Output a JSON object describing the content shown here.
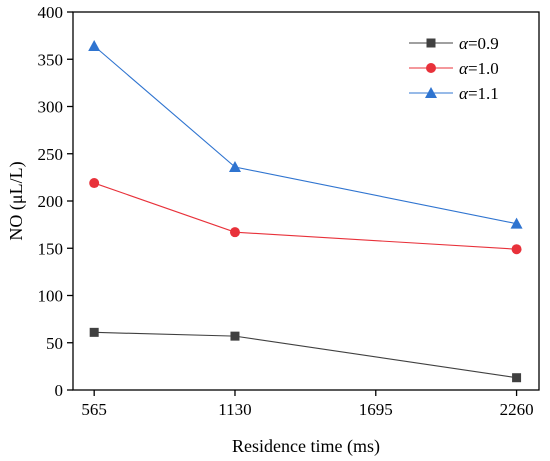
{
  "chart_data": {
    "type": "line",
    "x": [
      565,
      1130,
      2260
    ],
    "series": [
      {
        "name_symbol": "α",
        "name_value": "=0.9",
        "values": [
          61,
          57,
          13
        ],
        "color": "#404040",
        "marker": "square"
      },
      {
        "name_symbol": "α",
        "name_value": "=1.0",
        "values": [
          219,
          167,
          149
        ],
        "color": "#e8313a",
        "marker": "circle"
      },
      {
        "name_symbol": "α",
        "name_value": "=1.1",
        "values": [
          364,
          236,
          176
        ],
        "color": "#2f74d0",
        "marker": "triangle"
      }
    ],
    "xticks": [
      "565",
      "1130",
      "1695",
      "2260"
    ],
    "yticks": [
      "0",
      "50",
      "100",
      "150",
      "200",
      "250",
      "300",
      "350",
      "400"
    ],
    "xlabel": "Residence time (ms)",
    "ylabel": "NO (μL/L)",
    "xlim": [
      480,
      2350
    ],
    "ylim": [
      0,
      400
    ],
    "legend_position": "top-right",
    "grid": false
  }
}
